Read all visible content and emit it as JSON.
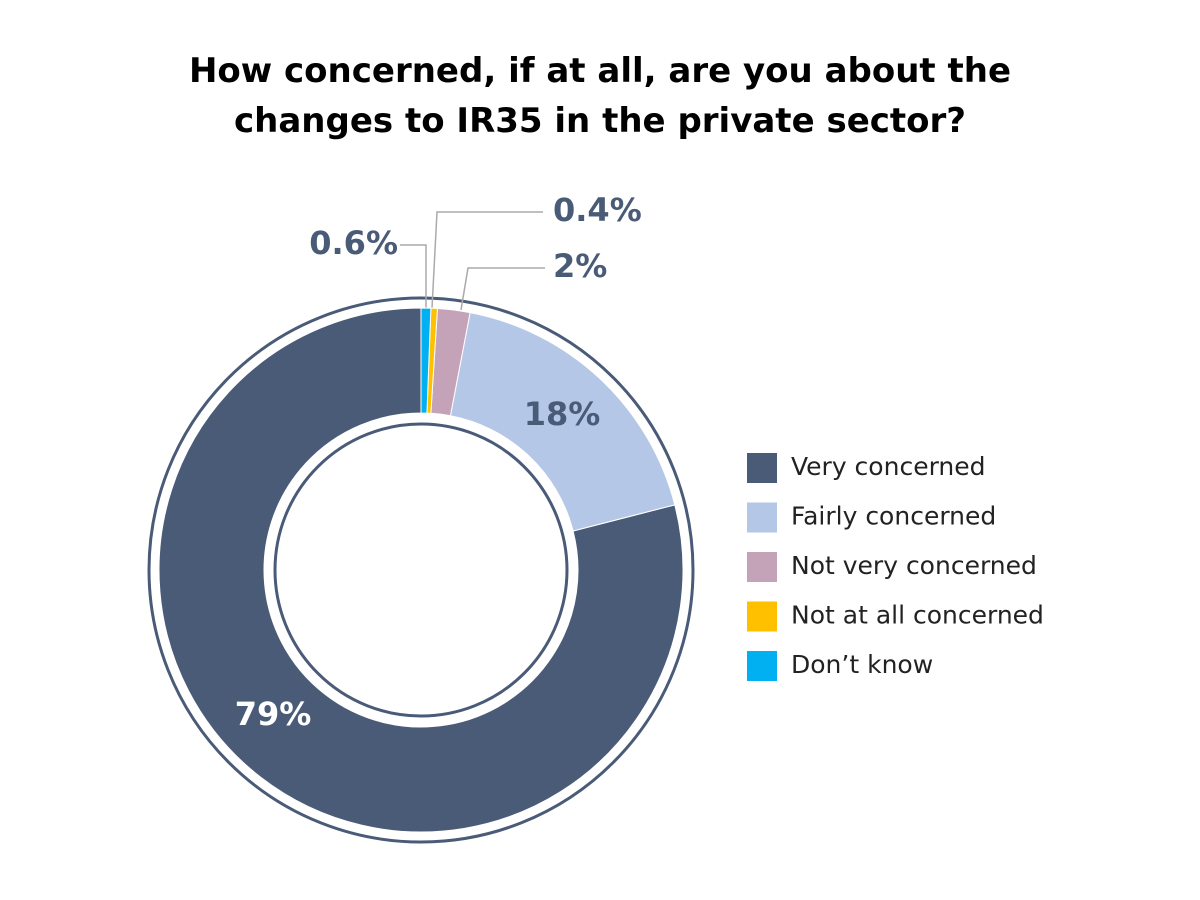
{
  "chart_data": {
    "type": "donut",
    "title": "How concerned, if at all, are you about the changes to IR35 in the private sector?",
    "categories": [
      "Very concerned",
      "Fairly concerned",
      "Not very concerned",
      "Not at all concerned",
      "Don’t know"
    ],
    "values": [
      79,
      18,
      2,
      0.4,
      0.6
    ],
    "value_labels": [
      "79%",
      "18%",
      "2%",
      "0.4%",
      "0.6%"
    ],
    "colors": [
      "#4a5b78",
      "#b4c7e7",
      "#c4a3b8",
      "#ffc000",
      "#00b0f0"
    ],
    "legend": "right"
  }
}
